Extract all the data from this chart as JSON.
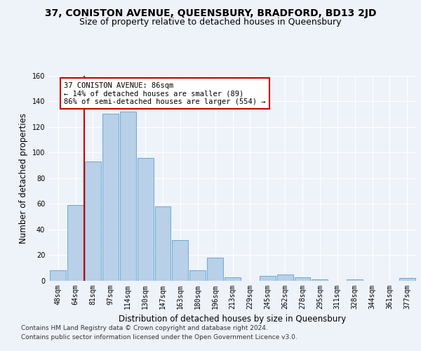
{
  "title_line1": "37, CONISTON AVENUE, QUEENSBURY, BRADFORD, BD13 2JD",
  "title_line2": "Size of property relative to detached houses in Queensbury",
  "xlabel": "Distribution of detached houses by size in Queensbury",
  "ylabel": "Number of detached properties",
  "bar_labels": [
    "48sqm",
    "64sqm",
    "81sqm",
    "97sqm",
    "114sqm",
    "130sqm",
    "147sqm",
    "163sqm",
    "180sqm",
    "196sqm",
    "213sqm",
    "229sqm",
    "245sqm",
    "262sqm",
    "278sqm",
    "295sqm",
    "311sqm",
    "328sqm",
    "344sqm",
    "361sqm",
    "377sqm"
  ],
  "bar_values": [
    8,
    59,
    93,
    130,
    132,
    96,
    58,
    32,
    8,
    18,
    3,
    0,
    4,
    5,
    3,
    1,
    0,
    1,
    0,
    0,
    2
  ],
  "bar_color": "#b8d0e8",
  "bar_edge_color": "#6aaad4",
  "vline_color": "#cc0000",
  "annotation_text": "37 CONISTON AVENUE: 86sqm\n← 14% of detached houses are smaller (89)\n86% of semi-detached houses are larger (554) →",
  "annotation_box_color": "#ffffff",
  "annotation_box_edge": "#cc0000",
  "ylim": [
    0,
    160
  ],
  "yticks": [
    0,
    20,
    40,
    60,
    80,
    100,
    120,
    140,
    160
  ],
  "background_color": "#eef2f9",
  "plot_background": "#eef2f9",
  "footer_line1": "Contains HM Land Registry data © Crown copyright and database right 2024.",
  "footer_line2": "Contains public sector information licensed under the Open Government Licence v3.0.",
  "title_fontsize": 10,
  "subtitle_fontsize": 9,
  "tick_fontsize": 7,
  "ylabel_fontsize": 8.5,
  "xlabel_fontsize": 8.5,
  "footer_fontsize": 6.5,
  "annotation_fontsize": 7.5
}
